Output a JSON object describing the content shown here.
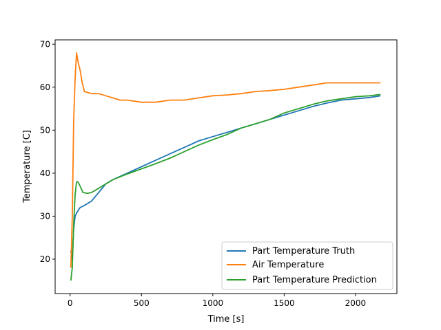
{
  "chart_data": {
    "type": "line",
    "title": "",
    "xlabel": "Time [s]",
    "ylabel": "Temperature [C]",
    "xlim": [
      -105,
      2290
    ],
    "ylim": [
      12,
      71
    ],
    "xticks": [
      0,
      500,
      1000,
      1500,
      2000
    ],
    "yticks": [
      20,
      30,
      40,
      50,
      60,
      70
    ],
    "grid": false,
    "legend_position": "lower-right",
    "series": [
      {
        "name": "Part Temperature Truth",
        "color": "#1f77b4",
        "points": [
          [
            5,
            22
          ],
          [
            15,
            20
          ],
          [
            25,
            27
          ],
          [
            35,
            30
          ],
          [
            50,
            31
          ],
          [
            70,
            32
          ],
          [
            100,
            32.5
          ],
          [
            150,
            33.5
          ],
          [
            200,
            35.5
          ],
          [
            250,
            37.5
          ],
          [
            300,
            38.5
          ],
          [
            400,
            40
          ],
          [
            500,
            41.5
          ],
          [
            600,
            43
          ],
          [
            700,
            44.5
          ],
          [
            800,
            46
          ],
          [
            900,
            47.5
          ],
          [
            1000,
            48.5
          ],
          [
            1100,
            49.5
          ],
          [
            1200,
            50.5
          ],
          [
            1300,
            51.5
          ],
          [
            1400,
            52.5
          ],
          [
            1500,
            53.5
          ],
          [
            1600,
            54.5
          ],
          [
            1700,
            55.5
          ],
          [
            1800,
            56.3
          ],
          [
            1900,
            57
          ],
          [
            2000,
            57.3
          ],
          [
            2100,
            57.6
          ],
          [
            2175,
            58
          ]
        ]
      },
      {
        "name": "Air Temperature",
        "color": "#ff7f0e",
        "points": [
          [
            5,
            18
          ],
          [
            15,
            30
          ],
          [
            25,
            52
          ],
          [
            35,
            62
          ],
          [
            45,
            68
          ],
          [
            55,
            66
          ],
          [
            70,
            64
          ],
          [
            85,
            61
          ],
          [
            100,
            59
          ],
          [
            150,
            58.5
          ],
          [
            200,
            58.5
          ],
          [
            250,
            58
          ],
          [
            300,
            57.5
          ],
          [
            350,
            57
          ],
          [
            400,
            57
          ],
          [
            500,
            56.5
          ],
          [
            600,
            56.5
          ],
          [
            700,
            57
          ],
          [
            800,
            57
          ],
          [
            900,
            57.5
          ],
          [
            1000,
            58
          ],
          [
            1100,
            58.2
          ],
          [
            1200,
            58.5
          ],
          [
            1300,
            59
          ],
          [
            1400,
            59.2
          ],
          [
            1500,
            59.5
          ],
          [
            1600,
            60
          ],
          [
            1700,
            60.5
          ],
          [
            1800,
            61
          ],
          [
            1900,
            61
          ],
          [
            2000,
            61
          ],
          [
            2100,
            61
          ],
          [
            2175,
            61
          ]
        ]
      },
      {
        "name": "Part Temperature Prediction",
        "color": "#2ca02c",
        "points": [
          [
            5,
            15
          ],
          [
            15,
            18
          ],
          [
            25,
            28
          ],
          [
            35,
            35
          ],
          [
            45,
            38
          ],
          [
            55,
            38
          ],
          [
            70,
            37
          ],
          [
            90,
            35.5
          ],
          [
            120,
            35.3
          ],
          [
            150,
            35.5
          ],
          [
            200,
            36.5
          ],
          [
            250,
            37.5
          ],
          [
            300,
            38.5
          ],
          [
            400,
            39.8
          ],
          [
            500,
            41
          ],
          [
            600,
            42.2
          ],
          [
            700,
            43.5
          ],
          [
            800,
            45
          ],
          [
            900,
            46.5
          ],
          [
            1000,
            47.8
          ],
          [
            1100,
            49
          ],
          [
            1200,
            50.5
          ],
          [
            1300,
            51.5
          ],
          [
            1400,
            52.5
          ],
          [
            1500,
            54
          ],
          [
            1600,
            55
          ],
          [
            1700,
            56
          ],
          [
            1800,
            56.8
          ],
          [
            1900,
            57.3
          ],
          [
            2000,
            57.8
          ],
          [
            2100,
            58
          ],
          [
            2175,
            58.3
          ]
        ]
      }
    ]
  }
}
